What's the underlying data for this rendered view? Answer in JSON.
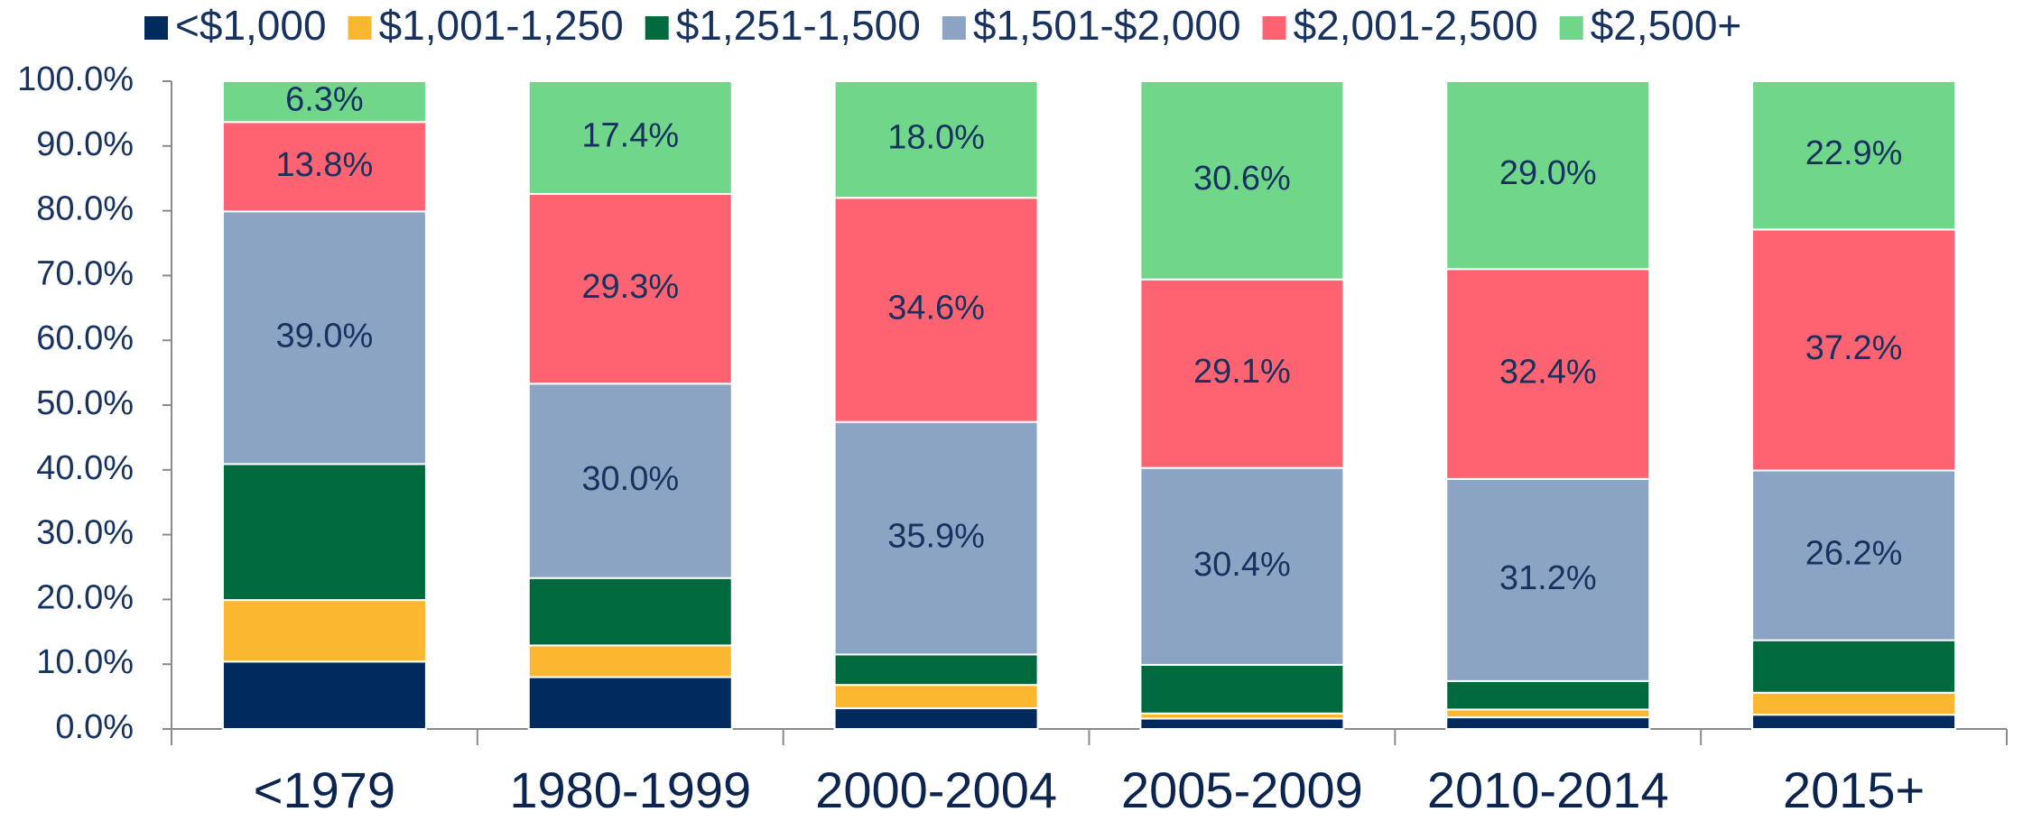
{
  "chart_data": {
    "type": "stacked_bar",
    "categories": [
      "<1979",
      "1980-1999",
      "2000-2004",
      "2005-2009",
      "2010-2014",
      "2015+"
    ],
    "series": [
      {
        "name": "<$1,000",
        "color": "#002b5c",
        "values": [
          10.4,
          8.0,
          3.2,
          1.6,
          1.8,
          2.2
        ]
      },
      {
        "name": "$1,001-1,250",
        "color": "#fbb72f",
        "values": [
          9.5,
          4.9,
          3.6,
          0.8,
          1.2,
          3.4
        ]
      },
      {
        "name": "$1,251-1,500",
        "color": "#006a3f",
        "values": [
          21.0,
          10.4,
          4.7,
          7.5,
          4.4,
          8.1
        ]
      },
      {
        "name": "$1,501-$2,000",
        "color": "#8ba4c4",
        "values": [
          39.0,
          30.0,
          35.9,
          30.4,
          31.2,
          26.2
        ],
        "value_labels": [
          "39.0%",
          "30.0%",
          "35.9%",
          "30.4%",
          "31.2%",
          "26.2%"
        ]
      },
      {
        "name": "$2,001-2,500",
        "color": "#fe6371",
        "values": [
          13.8,
          29.3,
          34.6,
          29.1,
          32.4,
          37.2
        ],
        "value_labels": [
          "13.8%",
          "29.3%",
          "34.6%",
          "29.1%",
          "32.4%",
          "37.2%"
        ]
      },
      {
        "name": "$2,500+",
        "color": "#6fd68a",
        "values": [
          6.3,
          17.4,
          18.0,
          30.6,
          29.0,
          22.9
        ],
        "value_labels": [
          "6.3%",
          "17.4%",
          "18.0%",
          "30.6%",
          "29.0%",
          "22.9%"
        ]
      }
    ],
    "ylim": [
      0,
      100
    ],
    "yticks": [
      {
        "value": 0,
        "label": "0.0%"
      },
      {
        "value": 10,
        "label": "10.0%"
      },
      {
        "value": 20,
        "label": "20.0%"
      },
      {
        "value": 30,
        "label": "30.0%"
      },
      {
        "value": 40,
        "label": "40.0%"
      },
      {
        "value": 50,
        "label": "50.0%"
      },
      {
        "value": 60,
        "label": "60.0%"
      },
      {
        "value": 70,
        "label": "70.0%"
      },
      {
        "value": 80,
        "label": "80.0%"
      },
      {
        "value": 90,
        "label": "90.0%"
      },
      {
        "value": 100,
        "label": "100.0%"
      }
    ],
    "legend": "top"
  }
}
